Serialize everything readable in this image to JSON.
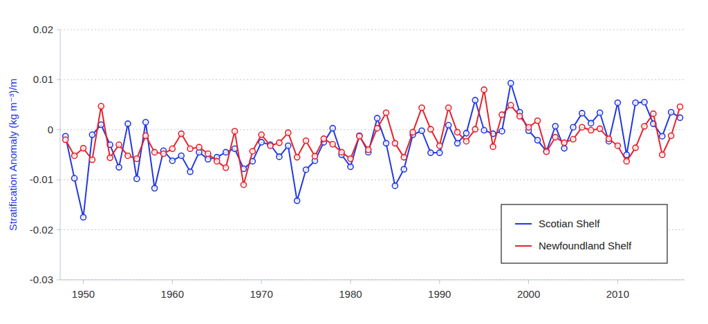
{
  "chart_data": {
    "type": "line",
    "y_label": "Stratification Anomaly (kg m⁻³)/m",
    "x": [
      1948,
      1949,
      1950,
      1951,
      1952,
      1953,
      1954,
      1955,
      1956,
      1957,
      1958,
      1959,
      1960,
      1961,
      1962,
      1963,
      1964,
      1965,
      1966,
      1967,
      1968,
      1969,
      1970,
      1971,
      1972,
      1973,
      1974,
      1975,
      1976,
      1977,
      1978,
      1979,
      1980,
      1981,
      1982,
      1983,
      1984,
      1985,
      1986,
      1987,
      1988,
      1989,
      1990,
      1991,
      1992,
      1993,
      1994,
      1995,
      1996,
      1997,
      1998,
      1999,
      2000,
      2001,
      2002,
      2003,
      2004,
      2005,
      2006,
      2007,
      2008,
      2009,
      2010,
      2011,
      2012,
      2013,
      2014,
      2015,
      2016,
      2017
    ],
    "series": [
      {
        "name": "Scotian Shelf",
        "color": "#2238e0",
        "marker": "circle",
        "values": [
          -0.0013,
          -0.0097,
          -0.0175,
          -0.001,
          0.001,
          -0.003,
          -0.0075,
          0.0012,
          -0.0098,
          0.0015,
          -0.0117,
          -0.0042,
          -0.0062,
          -0.0052,
          -0.0084,
          -0.0045,
          -0.0059,
          -0.0055,
          -0.0045,
          -0.0038,
          -0.0078,
          -0.0063,
          -0.0025,
          -0.003,
          -0.0054,
          -0.0032,
          -0.0142,
          -0.008,
          -0.0062,
          -0.0025,
          0.0003,
          -0.005,
          -0.0074,
          -0.0012,
          -0.0045,
          0.0023,
          -0.0027,
          -0.0112,
          -0.0079,
          -0.001,
          -0.0002,
          -0.0046,
          -0.0046,
          0.0009,
          -0.0027,
          -0.0007,
          0.0059,
          -0.0001,
          -0.0008,
          -0.0003,
          0.0093,
          0.0035,
          -0.0002,
          -0.0021,
          -0.0043,
          0.0007,
          -0.0037,
          0.0005,
          0.0033,
          0.0013,
          0.0034,
          -0.0023,
          0.0054,
          -0.005,
          0.0054,
          0.0055,
          0.0012,
          -0.0013,
          0.0035,
          0.0024
        ]
      },
      {
        "name": "Newfoundland Shelf",
        "color": "#e5222b",
        "marker": "circle",
        "values": [
          -0.002,
          -0.0052,
          -0.0037,
          -0.006,
          0.0047,
          -0.0056,
          -0.003,
          -0.0052,
          -0.0058,
          -0.0012,
          -0.0045,
          -0.0048,
          -0.0038,
          -0.0008,
          -0.0038,
          -0.0035,
          -0.0048,
          -0.0063,
          -0.0076,
          -0.0003,
          -0.011,
          -0.0043,
          -0.001,
          -0.0032,
          -0.0026,
          -0.0006,
          -0.0055,
          -0.0022,
          -0.0053,
          -0.0018,
          -0.0029,
          -0.0045,
          -0.0058,
          -0.0013,
          -0.004,
          0.0003,
          0.0034,
          -0.0027,
          -0.0055,
          -0.0005,
          0.0044,
          0.0001,
          -0.0032,
          0.0044,
          -0.0005,
          -0.0023,
          0.0001,
          0.008,
          -0.0034,
          0.003,
          0.0049,
          0.0027,
          0.0005,
          0.0018,
          -0.0044,
          -0.0015,
          -0.0026,
          -0.0019,
          0.0005,
          -0.0001,
          0.0002,
          -0.0018,
          -0.0032,
          -0.0063,
          -0.0036,
          0.0007,
          0.0032,
          -0.005,
          -0.0012,
          0.0046
        ]
      }
    ],
    "xlim": [
      1947.4,
      2017.5
    ],
    "xticks": [
      1950,
      1960,
      1970,
      1980,
      1990,
      2000,
      2010
    ],
    "ylim": [
      -0.03,
      0.02
    ],
    "yticks": [
      -0.03,
      -0.02,
      -0.01,
      0,
      0.01,
      0.02
    ],
    "grid": true,
    "legend": "bottom-right"
  }
}
